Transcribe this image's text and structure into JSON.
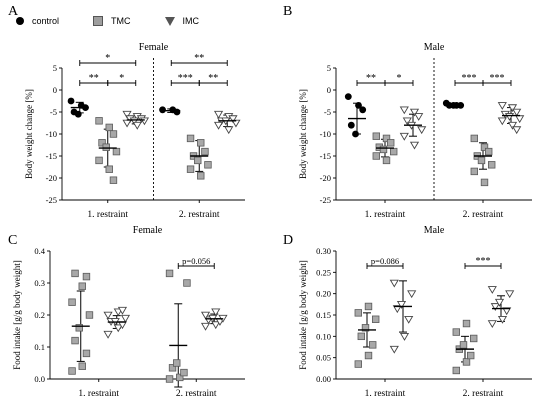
{
  "legend": {
    "items": [
      {
        "label": "control",
        "icon": "filled-circle-icon"
      },
      {
        "label": "TMC",
        "icon": "gray-square-icon"
      },
      {
        "label": "IMC",
        "icon": "open-triangle-icon"
      }
    ]
  },
  "colors": {
    "control": "#000000",
    "tmc_fill": "#a8a8a8",
    "tmc_stroke": "#5a5a5a",
    "imc_fill": "#ffffff",
    "imc_stroke": "#444444"
  },
  "chart_data": [
    {
      "panel": "A",
      "title": "Female",
      "type": "scatter",
      "ylabel": "Body weight change [%]",
      "ylim": [
        -25,
        5
      ],
      "yticks": [
        5,
        0,
        -5,
        -10,
        -15,
        -20,
        -25
      ],
      "groups": [
        "1. restraint",
        "2. restraint"
      ],
      "divider": true,
      "series": [
        {
          "name": "control",
          "points": [
            [
              -2.5,
              -3.5,
              -4,
              -5,
              -5.5
            ],
            [
              -4.5,
              -4.5,
              -5
            ]
          ],
          "mean": [
            -4,
            -4.7
          ],
          "sd": [
            1.2,
            0.4
          ]
        },
        {
          "name": "TMC",
          "points": [
            [
              -7,
              -8.5,
              -10,
              -12,
              -13,
              -14,
              -16,
              -18,
              -20.5
            ],
            [
              -11,
              -12,
              -14,
              -15,
              -16,
              -17,
              -18,
              -19.5
            ]
          ],
          "mean": [
            -13.2,
            -15
          ],
          "sd": [
            4.3,
            3.5
          ]
        },
        {
          "name": "IMC",
          "points": [
            [
              -5.5,
              -6,
              -6.5,
              -6.5,
              -7,
              -7,
              -7.5,
              -8
            ],
            [
              -5.5,
              -6,
              -6.5,
              -7,
              -7,
              -7.5,
              -8,
              -9
            ]
          ],
          "mean": [
            -6.8,
            -7
          ],
          "sd": [
            0.9,
            1.3
          ]
        }
      ],
      "significance": [
        {
          "label": "*",
          "from": 0,
          "to": 2,
          "group": 0,
          "level": 1
        },
        {
          "label": "**",
          "from": 0,
          "to": 1,
          "group": 0,
          "level": 0
        },
        {
          "label": "*",
          "from": 1,
          "to": 2,
          "group": 0,
          "level": 0
        },
        {
          "label": "**",
          "from": 0,
          "to": 2,
          "group": 1,
          "level": 1
        },
        {
          "label": "***",
          "from": 0,
          "to": 1,
          "group": 1,
          "level": 0
        },
        {
          "label": "**",
          "from": 1,
          "to": 2,
          "group": 1,
          "level": 0
        }
      ]
    },
    {
      "panel": "B",
      "title": "Male",
      "type": "scatter",
      "ylabel": "Body weight change [%]",
      "ylim": [
        -25,
        5
      ],
      "yticks": [
        5,
        0,
        -5,
        -10,
        -15,
        -20,
        -25
      ],
      "groups": [
        "1. restraint",
        "2. restraint"
      ],
      "divider": true,
      "series": [
        {
          "name": "control",
          "points": [
            [
              -1.5,
              -3.5,
              -4.5,
              -8,
              -10
            ],
            [
              -3,
              -3.5,
              -3.5,
              -3.5,
              -3.5
            ]
          ],
          "mean": [
            -6.5,
            -3.4
          ],
          "sd": [
            3.5,
            0.3
          ]
        },
        {
          "name": "TMC",
          "points": [
            [
              -10.5,
              -11,
              -12,
              -13,
              -13.5,
              -14,
              -15,
              -16
            ],
            [
              -11,
              -13,
              -14,
              -15,
              -16,
              -17,
              -18.5,
              -21
            ]
          ],
          "mean": [
            -13.2,
            -15
          ],
          "sd": [
            2,
            3
          ]
        },
        {
          "name": "IMC",
          "points": [
            [
              -4.5,
              -5,
              -6,
              -7,
              -8,
              -9,
              -10.5,
              -12.5
            ],
            [
              -3.5,
              -4,
              -5,
              -5.5,
              -6,
              -6.5,
              -7,
              -8,
              -9
            ]
          ],
          "mean": [
            -8,
            -5.8
          ],
          "sd": [
            2.5,
            1.8
          ]
        }
      ],
      "significance": [
        {
          "label": "**",
          "from": 0,
          "to": 1,
          "group": 0,
          "level": 0
        },
        {
          "label": "*",
          "from": 1,
          "to": 2,
          "group": 0,
          "level": 0
        },
        {
          "label": "***",
          "from": 0,
          "to": 1,
          "group": 1,
          "level": 0
        },
        {
          "label": "***",
          "from": 1,
          "to": 2,
          "group": 1,
          "level": 0
        }
      ]
    },
    {
      "panel": "C",
      "title": "Female",
      "type": "scatter",
      "ylabel": "Food intake [g/g body weight]",
      "ylim": [
        0,
        0.4
      ],
      "yticks": [
        0.0,
        0.1,
        0.2,
        0.3,
        0.4
      ],
      "groups": [
        "1. restraint",
        "2. restraint"
      ],
      "divider": false,
      "series": [
        {
          "name": "TMC",
          "points": [
            [
              0.025,
              0.04,
              0.08,
              0.12,
              0.16,
              0.2,
              0.24,
              0.29,
              0.32,
              0.33
            ],
            [
              0.0,
              0.005,
              0.02,
              0.035,
              0.05,
              0.3,
              0.33
            ]
          ],
          "mean": [
            0.165,
            0.105
          ],
          "sd": [
            0.11,
            0.13
          ]
        },
        {
          "name": "IMC",
          "points": [
            [
              0.14,
              0.16,
              0.17,
              0.18,
              0.18,
              0.19,
              0.2,
              0.21,
              0.215
            ],
            [
              0.165,
              0.17,
              0.18,
              0.185,
              0.19,
              0.19,
              0.2,
              0.21
            ]
          ],
          "mean": [
            0.178,
            0.188
          ],
          "sd": [
            0.02,
            0.015
          ]
        }
      ],
      "significance": [
        {
          "label": "p=0.056",
          "from": 0,
          "to": 1,
          "group": 1,
          "level": 0
        }
      ]
    },
    {
      "panel": "D",
      "title": "Male",
      "type": "scatter",
      "ylabel": "Food intake [g/g body weight]",
      "ylim": [
        0,
        0.3
      ],
      "yticks": [
        0.0,
        0.05,
        0.1,
        0.15,
        0.2,
        0.25,
        0.3
      ],
      "groups": [
        "1. restraint",
        "2. restraint"
      ],
      "divider": false,
      "series": [
        {
          "name": "TMC",
          "points": [
            [
              0.035,
              0.055,
              0.08,
              0.1,
              0.12,
              0.14,
              0.155,
              0.17
            ],
            [
              0.02,
              0.04,
              0.055,
              0.07,
              0.08,
              0.095,
              0.11,
              0.13
            ]
          ],
          "mean": [
            0.115,
            0.07
          ],
          "sd": [
            0.04,
            0.03
          ]
        },
        {
          "name": "IMC",
          "points": [
            [
              0.07,
              0.1,
              0.14,
              0.165,
              0.175,
              0.2,
              0.225
            ],
            [
              0.13,
              0.14,
              0.16,
              0.17,
              0.18,
              0.2,
              0.21
            ]
          ],
          "mean": [
            0.17,
            0.165
          ],
          "sd": [
            0.06,
            0.03
          ]
        }
      ],
      "significance": [
        {
          "label": "p=0.086",
          "from": 0,
          "to": 1,
          "group": 0,
          "level": 0
        },
        {
          "label": "***",
          "from": 0,
          "to": 1,
          "group": 1,
          "level": 0
        }
      ]
    }
  ]
}
